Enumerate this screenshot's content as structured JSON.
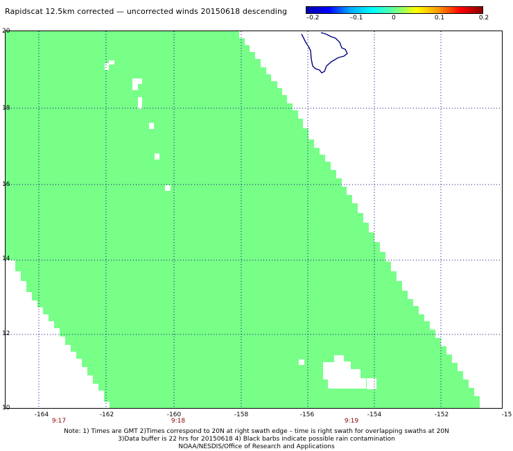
{
  "title": "Rapidscat 12.5km corrected — uncorrected winds 20150618 descending",
  "colorbar": {
    "labels": [
      "–0.2",
      "–0.1",
      "0",
      "0.1",
      "0.2"
    ],
    "colors": [
      "#0000aa",
      "#0000ff",
      "#00aaff",
      "#00ffff",
      "#66ff99",
      "#ffff00",
      "#ff9900",
      "#ff0000",
      "#8b0000"
    ]
  },
  "map": {
    "lat_labels": [
      "20",
      "18",
      "16",
      "14",
      "12",
      "10"
    ],
    "lon_labels": [
      "-164",
      "-162",
      "-160",
      "-158",
      "-156",
      "-154",
      "-152",
      "-15"
    ],
    "time_labels": [
      "9:17",
      "9:18",
      "9:19"
    ],
    "swath_color": "#77ff88",
    "coast_color": "#000080"
  },
  "notes": {
    "line1": "Note: 1) Times are GMT 2)Times correspond to 20N at right swath edge – time is right swath for overlapping swaths at 20N",
    "line2": "3)Data buffer is 22 hrs for 20150618 4) Black barbs indicate possible rain contamination",
    "line3": "NOAA/NESDIS/Office of Research and Applications"
  }
}
